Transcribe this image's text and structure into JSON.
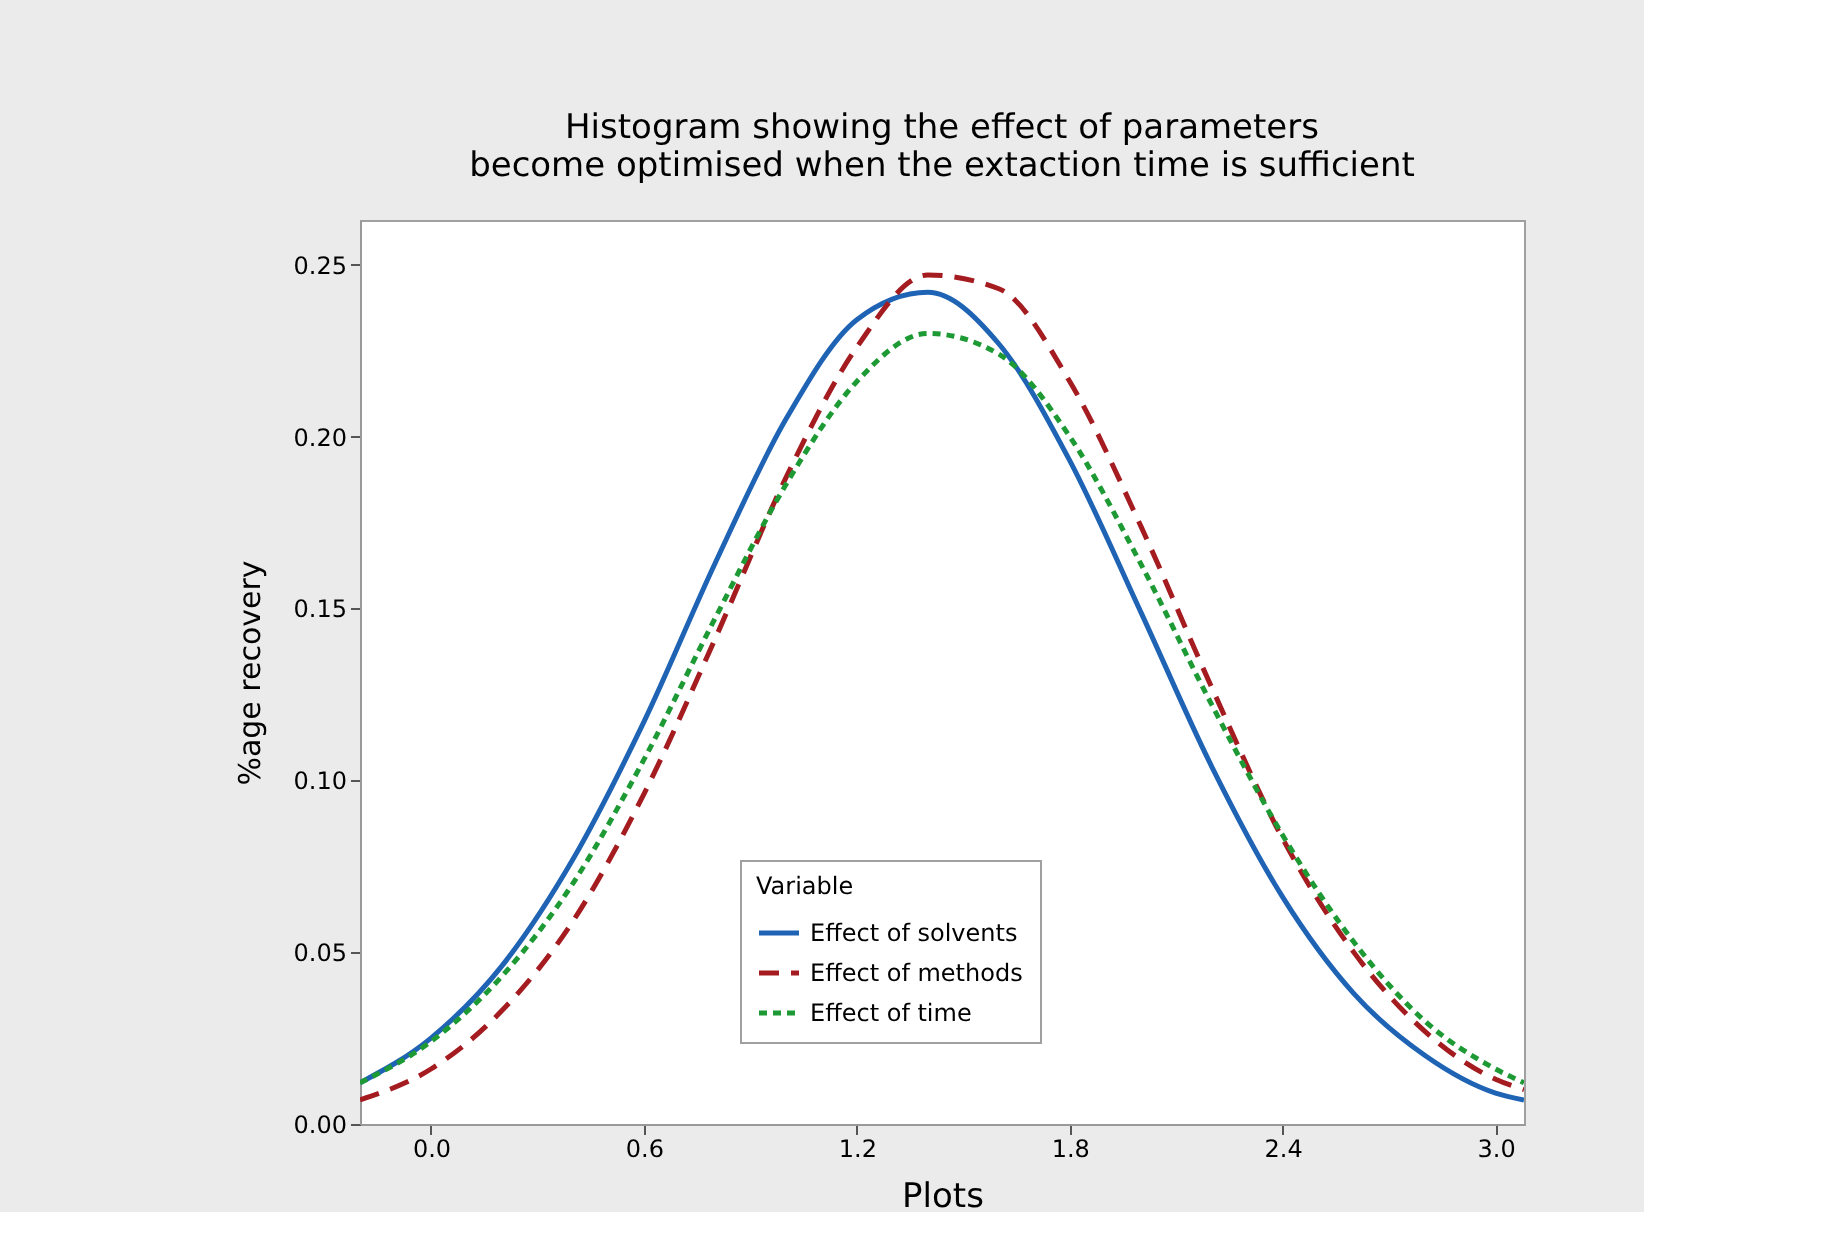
{
  "chart_data": {
    "type": "line",
    "title": "Histogram showing the effect of parameters\nbecome optimised when the extaction time is sufficient",
    "xlabel": "Plots",
    "ylabel": "%age recovery",
    "legend_title": "Variable",
    "legend": "bottom",
    "x": [
      -0.2,
      0.0,
      0.2,
      0.4,
      0.6,
      0.8,
      1.0,
      1.2,
      1.4,
      1.6,
      1.8,
      2.0,
      2.2,
      2.4,
      2.6,
      2.8,
      3.0,
      3.08
    ],
    "series": [
      {
        "name": "Effect of solvents",
        "color": "#1f63b5",
        "line_style": "solid",
        "values": [
          0.012,
          0.025,
          0.046,
          0.077,
          0.117,
          0.163,
          0.205,
          0.234,
          0.242,
          0.227,
          0.193,
          0.149,
          0.104,
          0.066,
          0.038,
          0.02,
          0.009,
          0.007
        ]
      },
      {
        "name": "Effect of methods",
        "color": "#a51c20",
        "line_style": "dashed",
        "values": [
          0.007,
          0.016,
          0.033,
          0.059,
          0.096,
          0.141,
          0.188,
          0.226,
          0.247,
          0.243,
          0.216,
          0.174,
          0.127,
          0.083,
          0.05,
          0.027,
          0.013,
          0.01
        ]
      },
      {
        "name": "Effect of time",
        "color": "#1e9a35",
        "line_style": "dotted",
        "values": [
          0.012,
          0.024,
          0.043,
          0.07,
          0.106,
          0.147,
          0.186,
          0.216,
          0.23,
          0.224,
          0.2,
          0.163,
          0.122,
          0.084,
          0.053,
          0.03,
          0.016,
          0.012
        ]
      }
    ],
    "xlim": [
      -0.2,
      3.08
    ],
    "ylim": [
      0,
      0.263
    ],
    "xticks": [
      {
        "value": 0,
        "label": "0.0"
      },
      0.6,
      1.2,
      1.8,
      2.4,
      {
        "value": 3,
        "label": "3.0"
      }
    ],
    "yticks": [
      {
        "value": 0,
        "label": "0.00"
      },
      0.05,
      {
        "value": 0.1,
        "label": "0.10"
      },
      0.15,
      {
        "value": 0.2,
        "label": "0.20"
      },
      0.25
    ],
    "grid": false,
    "marker": "none"
  }
}
